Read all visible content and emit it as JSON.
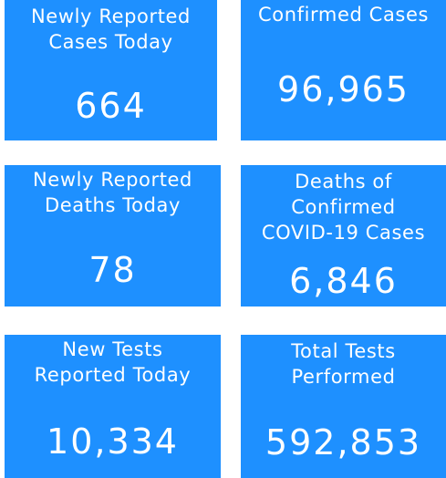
{
  "colors": {
    "tile_background": "#1e90ff",
    "tile_text": "#ffffff",
    "page_background": "#ffffff"
  },
  "tiles": [
    {
      "label": "Newly Reported\nCases Today",
      "value": "664"
    },
    {
      "label": "Confirmed Cases",
      "value": "96,965"
    },
    {
      "label": "Newly Reported\nDeaths Today",
      "value": "78"
    },
    {
      "label": "Deaths of\nConfirmed\nCOVID-19 Cases",
      "value": "6,846"
    },
    {
      "label": "New Tests\nReported Today",
      "value": "10,334"
    },
    {
      "label": "Total Tests\nPerformed",
      "value": "592,853"
    }
  ]
}
